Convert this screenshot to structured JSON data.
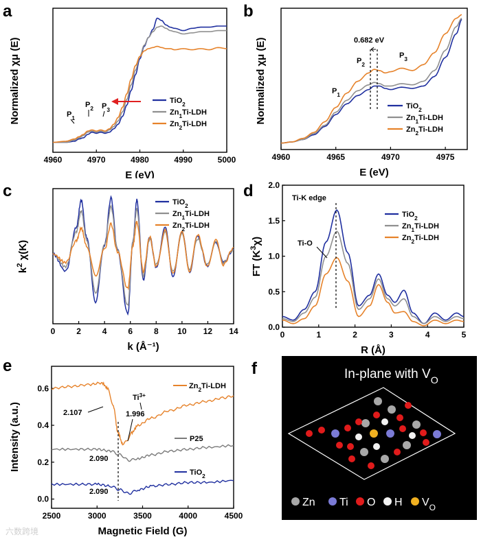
{
  "colors": {
    "tio2": "#1f2f9f",
    "zn1": "#8f8f8f",
    "zn2": "#e6822a",
    "p25": "#7a7a7a",
    "red_arrow": "#e02020"
  },
  "labels": {
    "a": "a",
    "b": "b",
    "c": "c",
    "d": "d",
    "e": "e",
    "f": "f"
  },
  "chart_data": [
    {
      "panel": "a",
      "type": "line",
      "xlabel": "E (eV)",
      "ylabel": "Normalized χμ (E)",
      "xlim": [
        4960,
        5000
      ],
      "xticks": [
        4960,
        4970,
        4980,
        4990,
        5000
      ],
      "annotations": [
        "P1",
        "P2",
        "P3"
      ],
      "legend": [
        "TiO2",
        "Zn1Ti-LDH",
        "Zn2Ti-LDH"
      ],
      "series": [
        {
          "name": "TiO2",
          "x": [
            4960,
            4963,
            4965,
            4966,
            4967,
            4968,
            4969,
            4970,
            4971,
            4972,
            4973,
            4974,
            4975,
            4976,
            4977,
            4978,
            4979,
            4980,
            4981,
            4982,
            4983,
            4984,
            4985,
            4986,
            4987,
            4988,
            4990,
            4992,
            4994,
            4996,
            4998,
            5000
          ],
          "y": [
            0.12,
            0.12,
            0.13,
            0.15,
            0.16,
            0.19,
            0.21,
            0.2,
            0.21,
            0.2,
            0.21,
            0.24,
            0.28,
            0.35,
            0.45,
            0.58,
            0.72,
            0.86,
            0.97,
            1.05,
            1.12,
            1.22,
            1.2,
            1.16,
            1.14,
            1.13,
            1.11,
            1.13,
            1.14,
            1.14,
            1.15,
            1.15
          ]
        },
        {
          "name": "Zn1Ti-LDH",
          "x": [
            4960,
            4963,
            4965,
            4966,
            4967,
            4968,
            4969,
            4970,
            4971,
            4972,
            4973,
            4974,
            4975,
            4976,
            4977,
            4978,
            4979,
            4980,
            4981,
            4982,
            4983,
            4984,
            4985,
            4986,
            4987,
            4988,
            4990,
            4992,
            4994,
            4996,
            4998,
            5000
          ],
          "y": [
            0.12,
            0.12,
            0.14,
            0.16,
            0.18,
            0.21,
            0.22,
            0.21,
            0.22,
            0.21,
            0.23,
            0.26,
            0.31,
            0.39,
            0.5,
            0.63,
            0.76,
            0.88,
            0.98,
            1.05,
            1.1,
            1.14,
            1.15,
            1.13,
            1.11,
            1.1,
            1.08,
            1.09,
            1.1,
            1.1,
            1.11,
            1.11
          ]
        },
        {
          "name": "Zn2Ti-LDH",
          "x": [
            4960,
            4963,
            4965,
            4966,
            4967,
            4968,
            4969,
            4970,
            4971,
            4972,
            4973,
            4974,
            4975,
            4976,
            4977,
            4978,
            4979,
            4980,
            4981,
            4982,
            4983,
            4984,
            4985,
            4986,
            4987,
            4988,
            4990,
            4992,
            4994,
            4996,
            4998,
            5000
          ],
          "y": [
            0.12,
            0.13,
            0.15,
            0.17,
            0.19,
            0.22,
            0.23,
            0.22,
            0.23,
            0.22,
            0.24,
            0.28,
            0.34,
            0.43,
            0.55,
            0.68,
            0.8,
            0.88,
            0.93,
            0.95,
            0.96,
            0.97,
            0.96,
            0.95,
            0.95,
            0.94,
            0.95,
            0.94,
            0.95,
            0.94,
            0.96,
            0.95
          ]
        }
      ]
    },
    {
      "panel": "b",
      "type": "line",
      "xlabel": "E (eV)",
      "ylabel": "Normalized χμ (E)",
      "xlim": [
        4960,
        4977
      ],
      "xticks": [
        4960,
        4965,
        4970,
        4975
      ],
      "annotations": [
        "0.682 eV",
        "P1",
        "P2",
        "P3"
      ],
      "legend": [
        "TiO2",
        "Zn1Ti-LDH",
        "Zn2Ti-LDH"
      ],
      "series": [
        {
          "name": "TiO2",
          "x": [
            4960,
            4961,
            4962,
            4963,
            4964,
            4965,
            4966,
            4967,
            4968,
            4968.5,
            4969,
            4969.5,
            4970,
            4971,
            4972,
            4973,
            4974,
            4975,
            4976,
            4976.5
          ],
          "y": [
            0.0,
            0.01,
            0.03,
            0.07,
            0.14,
            0.24,
            0.33,
            0.4,
            0.45,
            0.48,
            0.48,
            0.46,
            0.45,
            0.47,
            0.46,
            0.48,
            0.56,
            0.72,
            0.92,
            1.04
          ]
        },
        {
          "name": "Zn1Ti-LDH",
          "x": [
            4960,
            4961,
            4962,
            4963,
            4964,
            4965,
            4966,
            4967,
            4968,
            4968.5,
            4969,
            4969.5,
            4970,
            4971,
            4972,
            4973,
            4974,
            4975,
            4976,
            4976.5
          ],
          "y": [
            0.0,
            0.01,
            0.03,
            0.08,
            0.15,
            0.26,
            0.36,
            0.44,
            0.49,
            0.51,
            0.5,
            0.48,
            0.48,
            0.5,
            0.49,
            0.52,
            0.61,
            0.78,
            0.98,
            1.05
          ]
        },
        {
          "name": "Zn2Ti-LDH",
          "x": [
            4960,
            4961,
            4962,
            4963,
            4964,
            4965,
            4966,
            4967,
            4968,
            4968.5,
            4969,
            4969.5,
            4970,
            4971,
            4972,
            4973,
            4974,
            4975,
            4976,
            4976.5
          ],
          "y": [
            0.0,
            0.01,
            0.04,
            0.09,
            0.18,
            0.3,
            0.42,
            0.52,
            0.59,
            0.62,
            0.61,
            0.59,
            0.6,
            0.63,
            0.61,
            0.66,
            0.76,
            0.92,
            1.05,
            1.08
          ]
        }
      ]
    },
    {
      "panel": "c",
      "type": "line",
      "xlabel": "k (Å⁻¹)",
      "ylabel": "k² χ(K)",
      "xlim": [
        0,
        14
      ],
      "xticks": [
        0,
        2,
        4,
        6,
        8,
        10,
        12,
        14
      ],
      "legend": [
        "TiO2",
        "Zn1Ti-LDH",
        "Zn2Ti-LDH"
      ],
      "series": [
        {
          "name": "TiO2",
          "x": [
            0,
            1,
            1.8,
            2.2,
            2.6,
            3.3,
            4,
            4.5,
            5,
            5.8,
            6.2,
            6.5,
            7,
            7.5,
            8,
            8.7,
            9.3,
            10,
            10.6,
            11.2,
            12,
            12.6,
            13.2,
            14
          ],
          "y": [
            0.0,
            -0.4,
            0.6,
            1.25,
            0.4,
            -1.1,
            0.2,
            1.3,
            0.1,
            -1.4,
            0.3,
            1.25,
            -0.6,
            0.4,
            -0.3,
            0.6,
            -0.5,
            0.5,
            -0.4,
            0.4,
            -0.3,
            0.3,
            -0.2,
            0.1
          ]
        },
        {
          "name": "Zn1Ti-LDH",
          "x": [
            0,
            1,
            1.8,
            2.2,
            2.6,
            3.3,
            4,
            4.5,
            5,
            5.8,
            6.2,
            6.5,
            7,
            7.5,
            8,
            8.7,
            9.3,
            10,
            10.6,
            11.2,
            12,
            12.6,
            13.2,
            14
          ],
          "y": [
            0.0,
            -0.3,
            0.5,
            1.0,
            0.35,
            -0.9,
            0.2,
            1.1,
            0.1,
            -1.2,
            0.3,
            1.05,
            -0.5,
            0.35,
            -0.25,
            0.5,
            -0.4,
            0.45,
            -0.35,
            0.35,
            -0.25,
            0.3,
            -0.2,
            0.1
          ]
        },
        {
          "name": "Zn2Ti-LDH",
          "x": [
            0,
            1,
            1.8,
            2.2,
            2.6,
            3.3,
            4,
            4.5,
            5,
            5.8,
            6.2,
            6.5,
            7,
            7.5,
            8,
            8.7,
            9.3,
            10,
            10.6,
            11.2,
            12,
            12.6,
            13.2,
            14
          ],
          "y": [
            0.0,
            -0.2,
            0.3,
            0.6,
            0.2,
            -0.5,
            0.1,
            0.7,
            0.05,
            -0.8,
            0.2,
            0.75,
            -0.4,
            0.4,
            -0.3,
            0.55,
            -0.45,
            0.5,
            -0.4,
            0.45,
            -0.3,
            0.35,
            -0.25,
            0.15
          ]
        }
      ]
    },
    {
      "panel": "d",
      "type": "line",
      "xlabel": "R (Å)",
      "ylabel": "FT (K³χ)",
      "xlim": [
        0,
        5
      ],
      "ylim": [
        0,
        2.0
      ],
      "xticks": [
        0,
        1,
        2,
        3,
        4,
        5
      ],
      "yticks": [
        0.0,
        0.5,
        1.0,
        1.5,
        2.0
      ],
      "annotations": [
        "Ti-K edge",
        "Ti-O"
      ],
      "legend": [
        "TiO2",
        "Zn1Ti-LDH",
        "Zn2Ti-LDH"
      ],
      "series": [
        {
          "name": "TiO2",
          "x": [
            0,
            0.3,
            0.6,
            0.9,
            1.2,
            1.5,
            1.8,
            2.1,
            2.4,
            2.65,
            2.9,
            3.1,
            3.35,
            3.6,
            3.9,
            4.2,
            4.5,
            4.8,
            5
          ],
          "y": [
            0.15,
            0.1,
            0.25,
            0.5,
            1.2,
            1.65,
            1.05,
            0.3,
            0.45,
            0.75,
            0.45,
            0.35,
            0.52,
            0.2,
            0.05,
            0.2,
            0.1,
            0.2,
            0.15
          ]
        },
        {
          "name": "Zn1Ti-LDH",
          "x": [
            0,
            0.3,
            0.6,
            0.9,
            1.2,
            1.5,
            1.8,
            2.1,
            2.4,
            2.65,
            2.9,
            3.1,
            3.35,
            3.6,
            3.9,
            4.2,
            4.5,
            4.8,
            5
          ],
          "y": [
            0.12,
            0.08,
            0.2,
            0.42,
            1.0,
            1.35,
            0.9,
            0.25,
            0.4,
            0.68,
            0.4,
            0.3,
            0.4,
            0.15,
            0.05,
            0.15,
            0.08,
            0.15,
            0.12
          ]
        },
        {
          "name": "Zn2Ti-LDH",
          "x": [
            0,
            0.3,
            0.6,
            0.9,
            1.2,
            1.5,
            1.8,
            2.1,
            2.4,
            2.65,
            2.9,
            3.1,
            3.35,
            3.6,
            3.9,
            4.2,
            4.5,
            4.8,
            5
          ],
          "y": [
            0.1,
            0.05,
            0.12,
            0.3,
            0.75,
            0.98,
            0.65,
            0.15,
            0.3,
            0.6,
            0.35,
            0.2,
            0.22,
            0.08,
            0.02,
            0.1,
            0.05,
            0.1,
            0.08
          ]
        }
      ]
    },
    {
      "panel": "e",
      "type": "line",
      "xlabel": "Magnetic Field (G)",
      "ylabel": "Intensity (a.u.)",
      "xlim": [
        2500,
        4500
      ],
      "ylim": [
        -0.05,
        0.72
      ],
      "xticks": [
        2500,
        3000,
        3500,
        4000,
        4500
      ],
      "yticks": [
        0.0,
        0.2,
        0.4,
        0.6
      ],
      "annotations": [
        "2.107",
        "1.996",
        "Ti3+",
        "2.090",
        "2.090"
      ],
      "series": [
        {
          "name": "Zn2Ti-LDH",
          "x": [
            2500,
            2700,
            2900,
            3050,
            3120,
            3180,
            3230,
            3280,
            3320,
            3380,
            3450,
            3600,
            3800,
            4000,
            4200,
            4400,
            4500
          ],
          "y": [
            0.6,
            0.61,
            0.62,
            0.63,
            0.6,
            0.5,
            0.36,
            0.3,
            0.31,
            0.36,
            0.4,
            0.44,
            0.48,
            0.51,
            0.53,
            0.55,
            0.56
          ]
        },
        {
          "name": "P25",
          "x": [
            2500,
            2800,
            3000,
            3150,
            3250,
            3350,
            3450,
            3600,
            3800,
            4000,
            4200,
            4500
          ],
          "y": [
            0.27,
            0.27,
            0.27,
            0.26,
            0.24,
            0.21,
            0.22,
            0.24,
            0.26,
            0.27,
            0.28,
            0.29
          ]
        },
        {
          "name": "TiO2",
          "x": [
            2500,
            2800,
            3000,
            3150,
            3250,
            3350,
            3450,
            3600,
            3800,
            4000,
            4200,
            4500
          ],
          "y": [
            0.08,
            0.08,
            0.08,
            0.07,
            0.05,
            0.03,
            0.05,
            0.07,
            0.08,
            0.09,
            0.09,
            0.1
          ]
        }
      ]
    }
  ],
  "panel_f": {
    "title": "In-plane with VO",
    "legend": [
      {
        "label": "Zn",
        "color": "#a8a8a8"
      },
      {
        "label": "Ti",
        "color": "#7b7bd6"
      },
      {
        "label": "O",
        "color": "#e01b1b"
      },
      {
        "label": "H",
        "color": "#f2f2f2"
      },
      {
        "label": "VO",
        "color": "#f0b020"
      }
    ]
  },
  "watermark": "六数跨境"
}
